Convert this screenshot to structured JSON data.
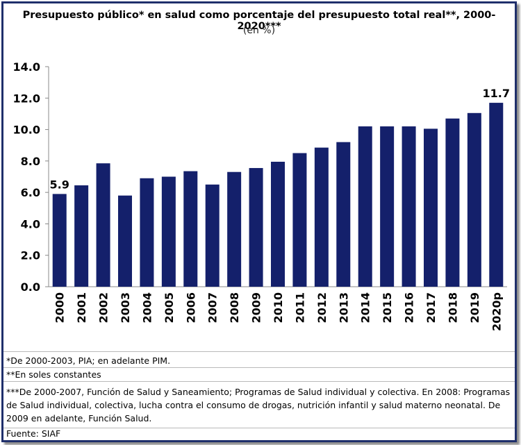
{
  "chart_data": {
    "type": "bar",
    "title": "Presupuesto público* en salud como porcentaje del presupuesto total real**, 2000-2020***",
    "subtitle": "(en %)",
    "categories": [
      "2000",
      "2001",
      "2002",
      "2003",
      "2004",
      "2005",
      "2006",
      "2007",
      "2008",
      "2009",
      "2010",
      "2011",
      "2012",
      "2013",
      "2014",
      "2015",
      "2016",
      "2017",
      "2018",
      "2019",
      "2020p"
    ],
    "values": [
      5.9,
      6.45,
      7.85,
      5.8,
      6.9,
      7.0,
      7.35,
      6.5,
      7.3,
      7.55,
      7.95,
      8.5,
      8.85,
      9.2,
      10.2,
      10.2,
      10.2,
      10.05,
      10.7,
      11.05,
      11.7
    ],
    "data_labels": [
      {
        "index": 0,
        "text": "5.9"
      },
      {
        "index": 20,
        "text": "11.7"
      }
    ],
    "ylim": [
      0,
      14
    ],
    "yticks": [
      "0.0",
      "2.0",
      "4.0",
      "6.0",
      "8.0",
      "10.0",
      "12.0",
      "14.0"
    ],
    "xlabel": "",
    "ylabel": "",
    "bar_color": "#14206b",
    "grid": false
  },
  "notes": {
    "note1": "*De 2000-2003, PIA; en adelante PIM.",
    "note2": "**En soles constantes",
    "note3": "***De 2000-2007, Función de Salud y Saneamiento; Programas de Salud individual y colectiva. En 2008: Programas de Salud individual, colectiva, lucha contra el consumo de drogas, nutrición infantil y salud materno neonatal. De 2009 en adelante, Función Salud.",
    "source": "Fuente: SIAF"
  }
}
